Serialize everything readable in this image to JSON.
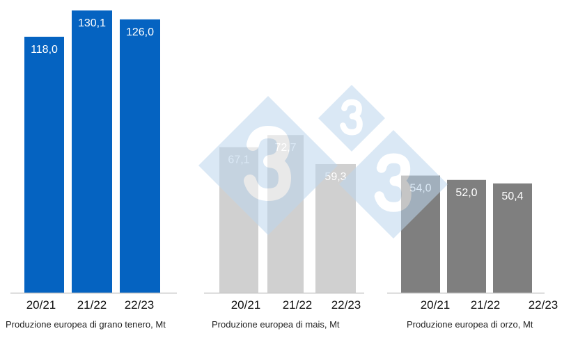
{
  "chart_data": [
    {
      "type": "bar",
      "title": "Produzione europea di grano tenero, Mt",
      "categories": [
        "20/21",
        "21/22",
        "22/23"
      ],
      "values": [
        118.0,
        130.1,
        126.0
      ],
      "labels": [
        "118,0",
        "130,1",
        "126,0"
      ],
      "color": "#0563C1",
      "ylim": [
        0,
        135
      ]
    },
    {
      "type": "bar",
      "title": "Produzione europea di mais, Mt",
      "categories": [
        "20/21",
        "21/22",
        "22/23"
      ],
      "values": [
        67.1,
        72.7,
        59.3
      ],
      "labels": [
        "67,1",
        "72,7",
        "59,3"
      ],
      "color": "#D0D0D0",
      "ylim": [
        0,
        135
      ]
    },
    {
      "type": "bar",
      "title": "Produzione europea di orzo, Mt",
      "categories": [
        "20/21",
        "21/22",
        "22/23"
      ],
      "values": [
        54.0,
        52.0,
        50.4
      ],
      "labels": [
        "54,0",
        "52,0",
        "50,4"
      ],
      "color": "#7F7F7F",
      "ylim": [
        0,
        135
      ]
    }
  ],
  "watermark": {
    "text": "3",
    "color": "#BDD7EE"
  }
}
